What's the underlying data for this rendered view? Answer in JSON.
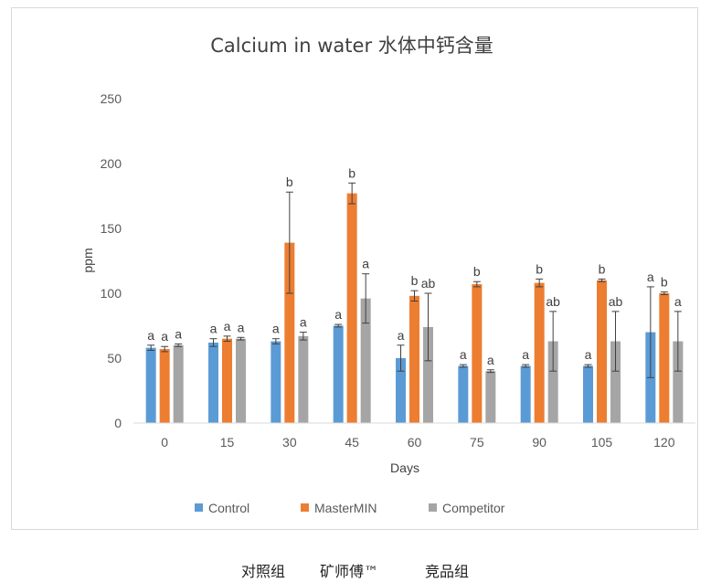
{
  "chart_data": {
    "type": "bar",
    "title": "Calcium in water 水体中钙含量",
    "xlabel": "Days",
    "ylabel": "ppm",
    "ylim": [
      0,
      250
    ],
    "yticks": [
      0,
      50,
      100,
      150,
      200,
      250
    ],
    "grid": false,
    "legend_position": "bottom",
    "categories": [
      "0",
      "15",
      "30",
      "45",
      "60",
      "75",
      "90",
      "105",
      "120"
    ],
    "series": [
      {
        "name": "Control",
        "color": "#5b9bd5",
        "values": [
          58,
          62,
          63,
          75,
          50,
          44,
          44,
          44,
          70
        ],
        "errors": [
          2,
          3,
          2,
          1,
          10,
          1,
          1,
          1,
          35
        ],
        "labels": [
          "a",
          "a",
          "a",
          "a",
          "a",
          "a",
          "a",
          "a",
          "a"
        ]
      },
      {
        "name": "MasterMIN",
        "color": "#ed7d31",
        "values": [
          57,
          65,
          139,
          177,
          98,
          107,
          108,
          110,
          100
        ],
        "errors": [
          2,
          2,
          39,
          8,
          4,
          2,
          3,
          1,
          1
        ],
        "labels": [
          "a",
          "a",
          "b",
          "b",
          "b",
          "b",
          "b",
          "b",
          "b"
        ]
      },
      {
        "name": "Competitor",
        "color": "#a5a5a5",
        "values": [
          60,
          65,
          67,
          96,
          74,
          40,
          63,
          63,
          63
        ],
        "errors": [
          1,
          1,
          3,
          19,
          26,
          1,
          23,
          23,
          23
        ],
        "labels": [
          "a",
          "a",
          "a",
          "a",
          "ab",
          "a",
          "ab",
          "ab",
          "a"
        ]
      }
    ]
  },
  "caption": {
    "control": "对照组",
    "mastermin": "矿师傅™",
    "competitor": "竞品组"
  }
}
